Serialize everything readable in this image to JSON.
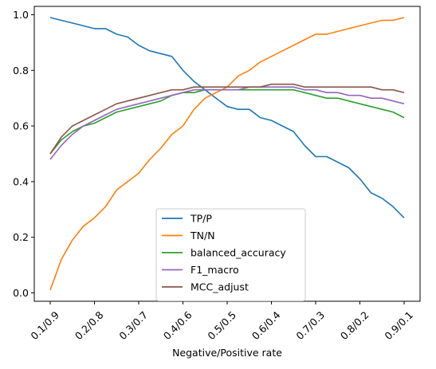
{
  "chart_data": {
    "type": "line",
    "title": "",
    "xlabel": "Negative/Positive rate",
    "ylabel": "",
    "x_tick_labels": [
      "0.1/0.9",
      "0.2/0.8",
      "0.3/0.7",
      "0.4/0.6",
      "0.5/0.5",
      "0.6/0.4",
      "0.7/0.3",
      "0.8/0.2",
      "0.9/0.1"
    ],
    "y_ticks": [
      "0.0",
      "0.2",
      "0.4",
      "0.6",
      "0.8",
      "1.0"
    ],
    "xlim": [
      0.1,
      0.9
    ],
    "ylim": [
      -0.03,
      1.03
    ],
    "grid": false,
    "legend_position": "lower center",
    "series": [
      {
        "name": "TP/P",
        "color": "#1f77b4",
        "x": [
          0.1,
          0.125,
          0.15,
          0.175,
          0.2,
          0.225,
          0.25,
          0.275,
          0.3,
          0.325,
          0.35,
          0.375,
          0.4,
          0.425,
          0.45,
          0.475,
          0.5,
          0.525,
          0.55,
          0.575,
          0.6,
          0.625,
          0.65,
          0.675,
          0.7,
          0.725,
          0.75,
          0.775,
          0.8,
          0.825,
          0.85,
          0.875,
          0.9
        ],
        "values": [
          0.99,
          0.98,
          0.97,
          0.96,
          0.95,
          0.95,
          0.93,
          0.92,
          0.89,
          0.87,
          0.86,
          0.85,
          0.8,
          0.76,
          0.73,
          0.7,
          0.67,
          0.66,
          0.66,
          0.63,
          0.62,
          0.6,
          0.58,
          0.53,
          0.49,
          0.49,
          0.47,
          0.45,
          0.41,
          0.36,
          0.34,
          0.31,
          0.27
        ]
      },
      {
        "name": "TN/N",
        "color": "#ff7f0e",
        "x": [
          0.1,
          0.125,
          0.15,
          0.175,
          0.2,
          0.225,
          0.25,
          0.275,
          0.3,
          0.325,
          0.35,
          0.375,
          0.4,
          0.425,
          0.45,
          0.475,
          0.5,
          0.525,
          0.55,
          0.575,
          0.6,
          0.625,
          0.65,
          0.675,
          0.7,
          0.725,
          0.75,
          0.775,
          0.8,
          0.825,
          0.85,
          0.875,
          0.9
        ],
        "values": [
          0.01,
          0.12,
          0.19,
          0.24,
          0.27,
          0.31,
          0.37,
          0.4,
          0.43,
          0.48,
          0.52,
          0.57,
          0.6,
          0.66,
          0.7,
          0.72,
          0.74,
          0.78,
          0.8,
          0.83,
          0.85,
          0.87,
          0.89,
          0.91,
          0.93,
          0.93,
          0.94,
          0.95,
          0.96,
          0.97,
          0.98,
          0.98,
          0.99
        ]
      },
      {
        "name": "balanced_accuracy",
        "color": "#2ca02c",
        "x": [
          0.1,
          0.125,
          0.15,
          0.175,
          0.2,
          0.225,
          0.25,
          0.275,
          0.3,
          0.325,
          0.35,
          0.375,
          0.4,
          0.425,
          0.45,
          0.475,
          0.5,
          0.525,
          0.55,
          0.575,
          0.6,
          0.625,
          0.65,
          0.675,
          0.7,
          0.725,
          0.75,
          0.775,
          0.8,
          0.825,
          0.85,
          0.875,
          0.9
        ],
        "values": [
          0.5,
          0.55,
          0.58,
          0.6,
          0.61,
          0.63,
          0.65,
          0.66,
          0.67,
          0.68,
          0.69,
          0.71,
          0.72,
          0.72,
          0.73,
          0.73,
          0.73,
          0.73,
          0.73,
          0.73,
          0.73,
          0.73,
          0.73,
          0.72,
          0.71,
          0.7,
          0.7,
          0.69,
          0.68,
          0.67,
          0.66,
          0.65,
          0.63
        ]
      },
      {
        "name": "F1_macro",
        "color": "#9467bd",
        "x": [
          0.1,
          0.125,
          0.15,
          0.175,
          0.2,
          0.225,
          0.25,
          0.275,
          0.3,
          0.325,
          0.35,
          0.375,
          0.4,
          0.425,
          0.45,
          0.475,
          0.5,
          0.525,
          0.55,
          0.575,
          0.6,
          0.625,
          0.65,
          0.675,
          0.7,
          0.725,
          0.75,
          0.775,
          0.8,
          0.825,
          0.85,
          0.875,
          0.9
        ],
        "values": [
          0.48,
          0.53,
          0.57,
          0.6,
          0.62,
          0.64,
          0.66,
          0.67,
          0.68,
          0.69,
          0.7,
          0.71,
          0.72,
          0.73,
          0.73,
          0.73,
          0.73,
          0.73,
          0.74,
          0.74,
          0.74,
          0.74,
          0.74,
          0.73,
          0.73,
          0.72,
          0.72,
          0.71,
          0.71,
          0.7,
          0.7,
          0.69,
          0.68
        ]
      },
      {
        "name": "MCC_adjust",
        "color": "#8c564b",
        "x": [
          0.1,
          0.125,
          0.15,
          0.175,
          0.2,
          0.225,
          0.25,
          0.275,
          0.3,
          0.325,
          0.35,
          0.375,
          0.4,
          0.425,
          0.45,
          0.475,
          0.5,
          0.525,
          0.55,
          0.575,
          0.6,
          0.625,
          0.65,
          0.675,
          0.7,
          0.725,
          0.75,
          0.775,
          0.8,
          0.825,
          0.85,
          0.875,
          0.9
        ],
        "values": [
          0.5,
          0.56,
          0.6,
          0.62,
          0.64,
          0.66,
          0.68,
          0.69,
          0.7,
          0.71,
          0.72,
          0.73,
          0.73,
          0.74,
          0.74,
          0.74,
          0.74,
          0.74,
          0.74,
          0.74,
          0.75,
          0.75,
          0.75,
          0.74,
          0.74,
          0.74,
          0.74,
          0.74,
          0.74,
          0.74,
          0.73,
          0.73,
          0.72
        ]
      }
    ]
  }
}
